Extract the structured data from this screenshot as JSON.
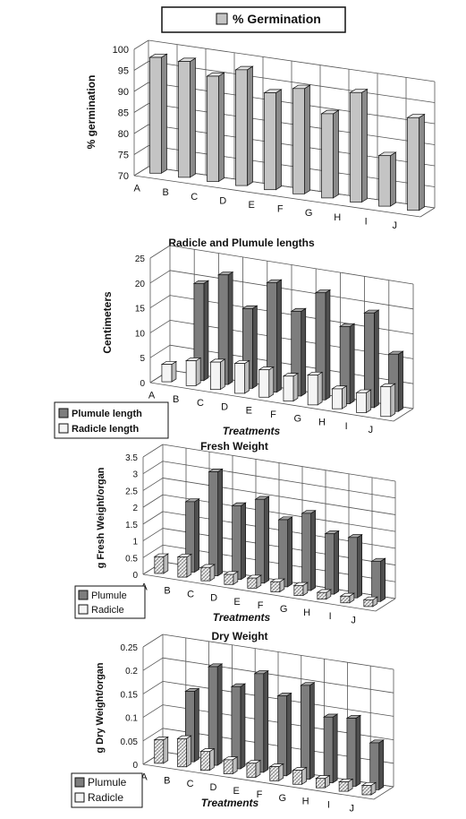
{
  "colors": {
    "background": "#ffffff",
    "grid": "#555555",
    "germination_front": "#c4c4c4",
    "germination_side": "#8a8a8a",
    "germination_top": "#e2e2e2",
    "plumule_front": "#7d7d7d",
    "plumule_side": "#4f4f4f",
    "plumule_top": "#a5a5a5",
    "radicle_front": "#f4f4f4",
    "radicle_side": "#bcbcbc",
    "radicle_top": "#ffffff"
  },
  "chart_data": [
    {
      "id": "germination",
      "type": "bar",
      "title": "",
      "legend": [
        "% Germination"
      ],
      "legend_position": "top-center",
      "xlabel": "",
      "ylabel": "% germination",
      "categories": [
        "A",
        "B",
        "C",
        "D",
        "E",
        "F",
        "G",
        "H",
        "I",
        "J"
      ],
      "ylim": [
        70,
        100
      ],
      "yticks": [
        "70",
        "75",
        "80",
        "85",
        "90",
        "95",
        "100"
      ],
      "grid": true,
      "series": [
        {
          "name": "% Germination",
          "values": [
            97.5,
            97.5,
            95,
            97.5,
            93,
            95,
            90,
            96,
            82,
            92
          ]
        }
      ]
    },
    {
      "id": "lengths",
      "type": "bar",
      "title": "Radicle and Plumule lengths",
      "legend": [
        "Plumule length",
        "Radicle length"
      ],
      "legend_position": "bottom-left",
      "xlabel": "Treatments",
      "ylabel": "Centimeters",
      "categories": [
        "A",
        "B",
        "C",
        "D",
        "E",
        "F",
        "G",
        "H",
        "I",
        "J"
      ],
      "ylim": [
        0,
        25
      ],
      "yticks": [
        "0",
        "5",
        "10",
        "15",
        "20",
        "25"
      ],
      "grid": true,
      "series": [
        {
          "name": "Plumule length",
          "values": [
            0,
            19.5,
            22,
            16,
            22,
            17,
            21.5,
            15.5,
            19,
            11.5
          ]
        },
        {
          "name": "Radicle length",
          "values": [
            3.5,
            5,
            5.5,
            6,
            5.5,
            5,
            6,
            4,
            4,
            6
          ]
        }
      ]
    },
    {
      "id": "fresh",
      "type": "bar",
      "title": "Fresh Weight",
      "legend": [
        "Plumule",
        "Radicle"
      ],
      "legend_position": "bottom-left",
      "xlabel": "Treatments",
      "ylabel": "g Fresh Weight/organ",
      "categories": [
        "A",
        "B",
        "C",
        "D",
        "E",
        "F",
        "G",
        "H",
        "I",
        "J"
      ],
      "ylim": [
        0,
        3.5
      ],
      "yticks": [
        "0",
        "0.5",
        "1",
        "1.5",
        "2",
        "2.5",
        "3",
        "3.5"
      ],
      "grid": true,
      "series": [
        {
          "name": "Plumule",
          "values": [
            0,
            2.1,
            3.1,
            2.2,
            2.5,
            2.0,
            2.3,
            1.8,
            1.8,
            1.2
          ]
        },
        {
          "name": "Radicle",
          "values": [
            0.5,
            0.6,
            0.4,
            0.3,
            0.3,
            0.3,
            0.3,
            0.2,
            0.2,
            0.2
          ]
        }
      ]
    },
    {
      "id": "dry",
      "type": "bar",
      "title": "Dry  Weight",
      "legend": [
        "Plumule",
        "Radicle"
      ],
      "legend_position": "bottom-left",
      "xlabel": "Treatments",
      "ylabel": "g Dry Weight/organ",
      "categories": [
        "A",
        "B",
        "C",
        "D",
        "E",
        "F",
        "G",
        "H",
        "I",
        "J"
      ],
      "ylim": [
        0,
        0.25
      ],
      "yticks": [
        "0",
        "0.05",
        "0.1",
        "0.15",
        "0.2",
        "0.25"
      ],
      "grid": true,
      "series": [
        {
          "name": "Plumule",
          "values": [
            0,
            0.15,
            0.21,
            0.175,
            0.21,
            0.17,
            0.2,
            0.14,
            0.145,
            0.1
          ]
        },
        {
          "name": "Radicle",
          "values": [
            0.05,
            0.06,
            0.04,
            0.03,
            0.03,
            0.03,
            0.03,
            0.02,
            0.02,
            0.02
          ]
        }
      ]
    }
  ]
}
